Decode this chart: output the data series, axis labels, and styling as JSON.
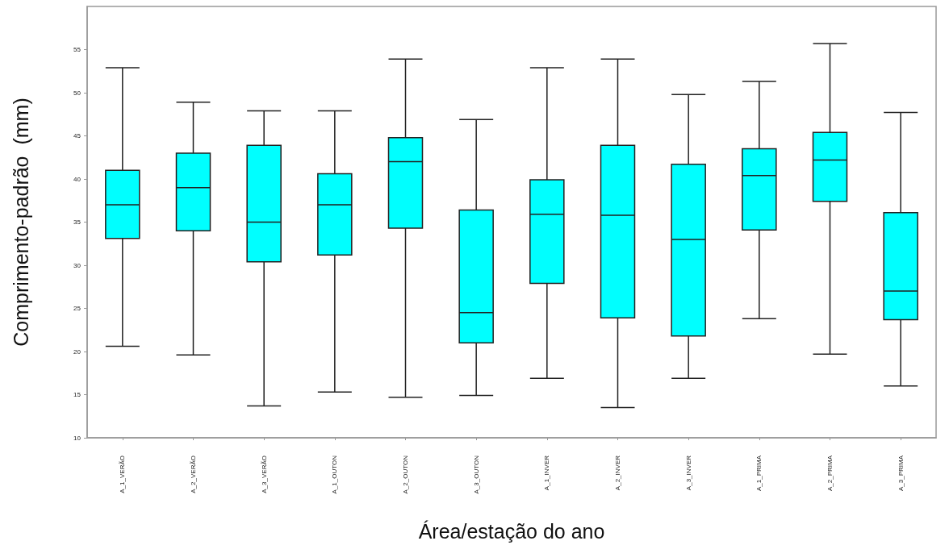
{
  "chart_data": {
    "type": "box",
    "xlabel": "Área/estação do ano",
    "ylabel": "Comprimento-padrão  (mm)",
    "categories": [
      "A_1_VERÃO",
      "A_2_VERÃO",
      "A_3_VERÃO",
      "A_1_OUTON",
      "A_2_OUTON",
      "A_3_OUTON",
      "A_1_INVER",
      "A_2_INVER",
      "A_3_INVER",
      "A_1_PRIMA",
      "A_2_PRIMA",
      "A_3_PRIMA"
    ],
    "color": "#00ffff",
    "boxes": [
      {
        "low": 20.6,
        "q1": 33.1,
        "median": 37.0,
        "q3": 41.0,
        "high": 52.9
      },
      {
        "low": 19.6,
        "q1": 34.0,
        "median": 39.0,
        "q3": 43.0,
        "high": 48.9
      },
      {
        "low": 13.7,
        "q1": 30.4,
        "median": 35.0,
        "q3": 43.9,
        "high": 47.9
      },
      {
        "low": 15.3,
        "q1": 31.2,
        "median": 37.0,
        "q3": 40.6,
        "high": 47.9
      },
      {
        "low": 14.7,
        "q1": 34.3,
        "median": 42.0,
        "q3": 44.8,
        "high": 53.9
      },
      {
        "low": 14.9,
        "q1": 21.0,
        "median": 24.5,
        "q3": 36.4,
        "high": 46.9
      },
      {
        "low": 16.9,
        "q1": 27.9,
        "median": 35.9,
        "q3": 39.9,
        "high": 52.9
      },
      {
        "low": 13.5,
        "q1": 23.9,
        "median": 35.8,
        "q3": 43.9,
        "high": 53.9
      },
      {
        "low": 16.9,
        "q1": 21.8,
        "median": 33.0,
        "q3": 41.7,
        "high": 49.8
      },
      {
        "low": 23.8,
        "q1": 34.1,
        "median": 40.4,
        "q3": 43.5,
        "high": 51.3
      },
      {
        "low": 19.7,
        "q1": 37.4,
        "median": 42.2,
        "q3": 45.4,
        "high": 55.7
      },
      {
        "low": 16.0,
        "q1": 23.7,
        "median": 27.0,
        "q3": 36.1,
        "high": 47.7
      }
    ],
    "ylim": [
      10,
      60
    ],
    "yticks": [
      10,
      15,
      20,
      25,
      30,
      35,
      40,
      45,
      50,
      55
    ],
    "grid": false
  }
}
